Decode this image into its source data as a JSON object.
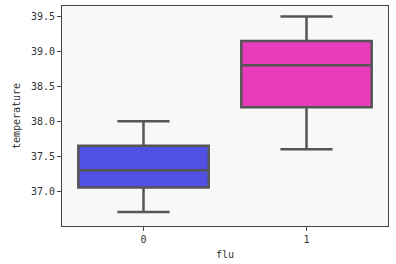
{
  "chart_data": {
    "type": "box",
    "x_label": "flu",
    "y_label": "temperature",
    "categories": [
      "0",
      "1"
    ],
    "whisker_low": [
      36.7,
      37.6
    ],
    "q1": [
      37.05,
      38.2
    ],
    "median": [
      37.3,
      38.8
    ],
    "q3": [
      37.65,
      39.15
    ],
    "whisker_high": [
      38.0,
      39.5
    ],
    "colors": [
      "#5050e2",
      "#e83cbd"
    ],
    "ylim": [
      36.5,
      39.65
    ],
    "yticks": [
      {
        "value": 37,
        "label": "37.0"
      },
      {
        "value": 37.5,
        "label": "37.5"
      },
      {
        "value": 38,
        "label": "38.0"
      },
      {
        "value": 38.5,
        "label": "38.5"
      },
      {
        "value": 39,
        "label": "39.0"
      },
      {
        "value": 39.5,
        "label": "39.5"
      }
    ],
    "grid": false
  }
}
